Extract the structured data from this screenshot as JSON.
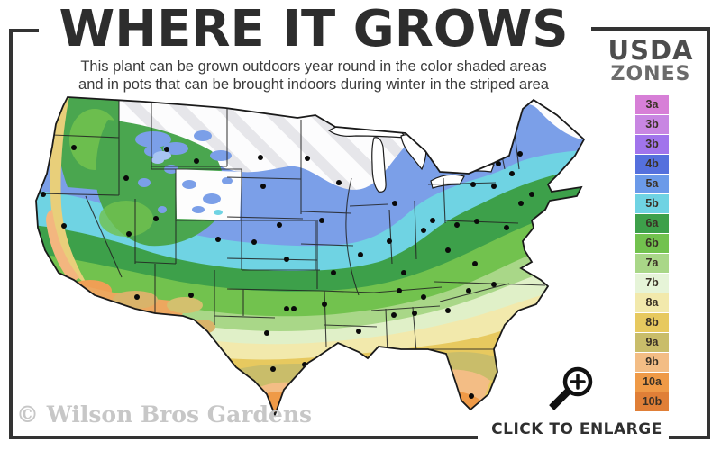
{
  "header": {
    "title": "WHERE IT GROWS",
    "subtitle_line1": "This plant can be grown outdoors year round in the color shaded areas",
    "subtitle_line2": "and in pots that can be brought indoors during winter in the striped area"
  },
  "legend": {
    "heading_line1": "USDA",
    "heading_line2": "ZONES",
    "zones": [
      {
        "label": "3a",
        "color": "#d77fd7"
      },
      {
        "label": "3b",
        "color": "#c886e2"
      },
      {
        "label": "3b",
        "color": "#a174ec"
      },
      {
        "label": "4b",
        "color": "#5570dd"
      },
      {
        "label": "5a",
        "color": "#6b9ae9"
      },
      {
        "label": "5b",
        "color": "#6fd3e3"
      },
      {
        "label": "6a",
        "color": "#3da04a"
      },
      {
        "label": "6b",
        "color": "#72c24e"
      },
      {
        "label": "7a",
        "color": "#a9d788"
      },
      {
        "label": "7b",
        "color": "#e6f4d8"
      },
      {
        "label": "8a",
        "color": "#f2e9ac"
      },
      {
        "label": "8b",
        "color": "#e7c95f"
      },
      {
        "label": "9a",
        "color": "#c9bd6a"
      },
      {
        "label": "9b",
        "color": "#f3bd85"
      },
      {
        "label": "10a",
        "color": "#ef9a47"
      },
      {
        "label": "10b",
        "color": "#e07f37"
      }
    ]
  },
  "footer": {
    "watermark": "© Wilson Bros Gardens",
    "enlarge_label": "CLICK TO ENLARGE"
  },
  "map": {
    "marker_color": "#0a0a0a",
    "markers": [
      [
        62,
        71
      ],
      [
        120,
        105
      ],
      [
        165,
        73
      ],
      [
        198,
        86
      ],
      [
        269,
        82
      ],
      [
        272,
        114
      ],
      [
        153,
        150
      ],
      [
        51,
        158
      ],
      [
        123,
        167
      ],
      [
        222,
        173
      ],
      [
        262,
        176
      ],
      [
        28,
        123
      ],
      [
        75,
        237
      ],
      [
        132,
        237
      ],
      [
        192,
        235
      ],
      [
        290,
        157
      ],
      [
        298,
        195
      ],
      [
        298,
        250
      ],
      [
        306,
        250
      ],
      [
        276,
        277
      ],
      [
        283,
        317
      ],
      [
        318,
        312
      ],
      [
        265,
        340
      ],
      [
        321,
        83
      ],
      [
        356,
        110
      ],
      [
        337,
        152
      ],
      [
        380,
        190
      ],
      [
        350,
        210
      ],
      [
        412,
        175
      ],
      [
        418,
        133
      ],
      [
        450,
        163
      ],
      [
        460,
        152
      ],
      [
        428,
        210
      ],
      [
        423,
        230
      ],
      [
        450,
        237
      ],
      [
        340,
        245
      ],
      [
        369,
        302
      ],
      [
        382,
        310
      ],
      [
        378,
        275
      ],
      [
        417,
        257
      ],
      [
        440,
        255
      ],
      [
        475,
        313
      ],
      [
        503,
        347
      ],
      [
        477,
        252
      ],
      [
        500,
        230
      ],
      [
        528,
        223
      ],
      [
        507,
        200
      ],
      [
        477,
        185
      ],
      [
        487,
        157
      ],
      [
        509,
        153
      ],
      [
        505,
        112
      ],
      [
        528,
        114
      ],
      [
        542,
        160
      ],
      [
        533,
        89
      ],
      [
        548,
        100
      ],
      [
        557,
        78
      ],
      [
        570,
        123
      ],
      [
        558,
        133
      ]
    ]
  }
}
